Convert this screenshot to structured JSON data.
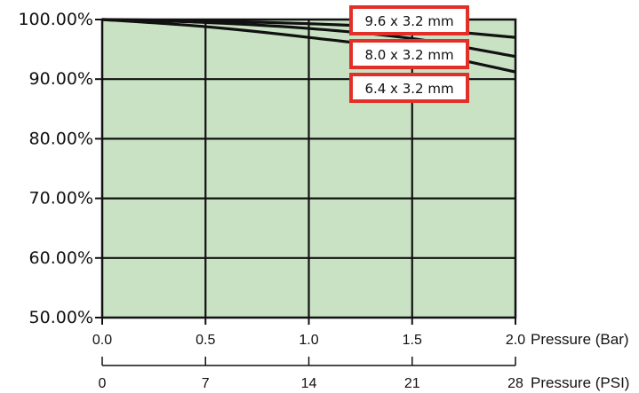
{
  "chart_data": {
    "type": "line",
    "title": "",
    "ylabel": "",
    "ylim": [
      50,
      100
    ],
    "yticks": [
      50,
      60,
      70,
      80,
      90,
      100
    ],
    "ytick_labels": [
      "50.00%",
      "60.00%",
      "70.00%",
      "80.00%",
      "90.00%",
      "100.00%"
    ],
    "xlim": [
      0,
      2.0
    ],
    "x_axes": [
      {
        "label": "Pressure (Bar)",
        "ticks": [
          0,
          0.5,
          1.0,
          1.5,
          2.0
        ],
        "tick_labels": [
          "0.0",
          "0.5",
          "1.0",
          "1.5",
          "2.0"
        ]
      },
      {
        "label": "Pressure (PSI)",
        "ticks": [
          0,
          7,
          14,
          21,
          28
        ],
        "tick_labels": [
          "0",
          "7",
          "14",
          "21",
          "28"
        ]
      }
    ],
    "grid": true,
    "background_color": "#c9e2c4",
    "legend_border_color": "#e23028",
    "series": [
      {
        "name": "9.6 x 3.2 mm",
        "x": [
          0,
          0.5,
          1.0,
          1.5,
          2.0
        ],
        "values": [
          100,
          99.8,
          99.3,
          98.5,
          97.0
        ]
      },
      {
        "name": "8.0 x 3.2 mm",
        "x": [
          0,
          0.5,
          1.0,
          1.5,
          2.0
        ],
        "values": [
          100,
          99.5,
          98.5,
          96.8,
          93.8
        ]
      },
      {
        "name": "6.4 x 3.2 mm",
        "x": [
          0,
          0.5,
          1.0,
          1.5,
          2.0
        ],
        "values": [
          100,
          98.8,
          97.0,
          94.8,
          91.2
        ]
      }
    ]
  }
}
